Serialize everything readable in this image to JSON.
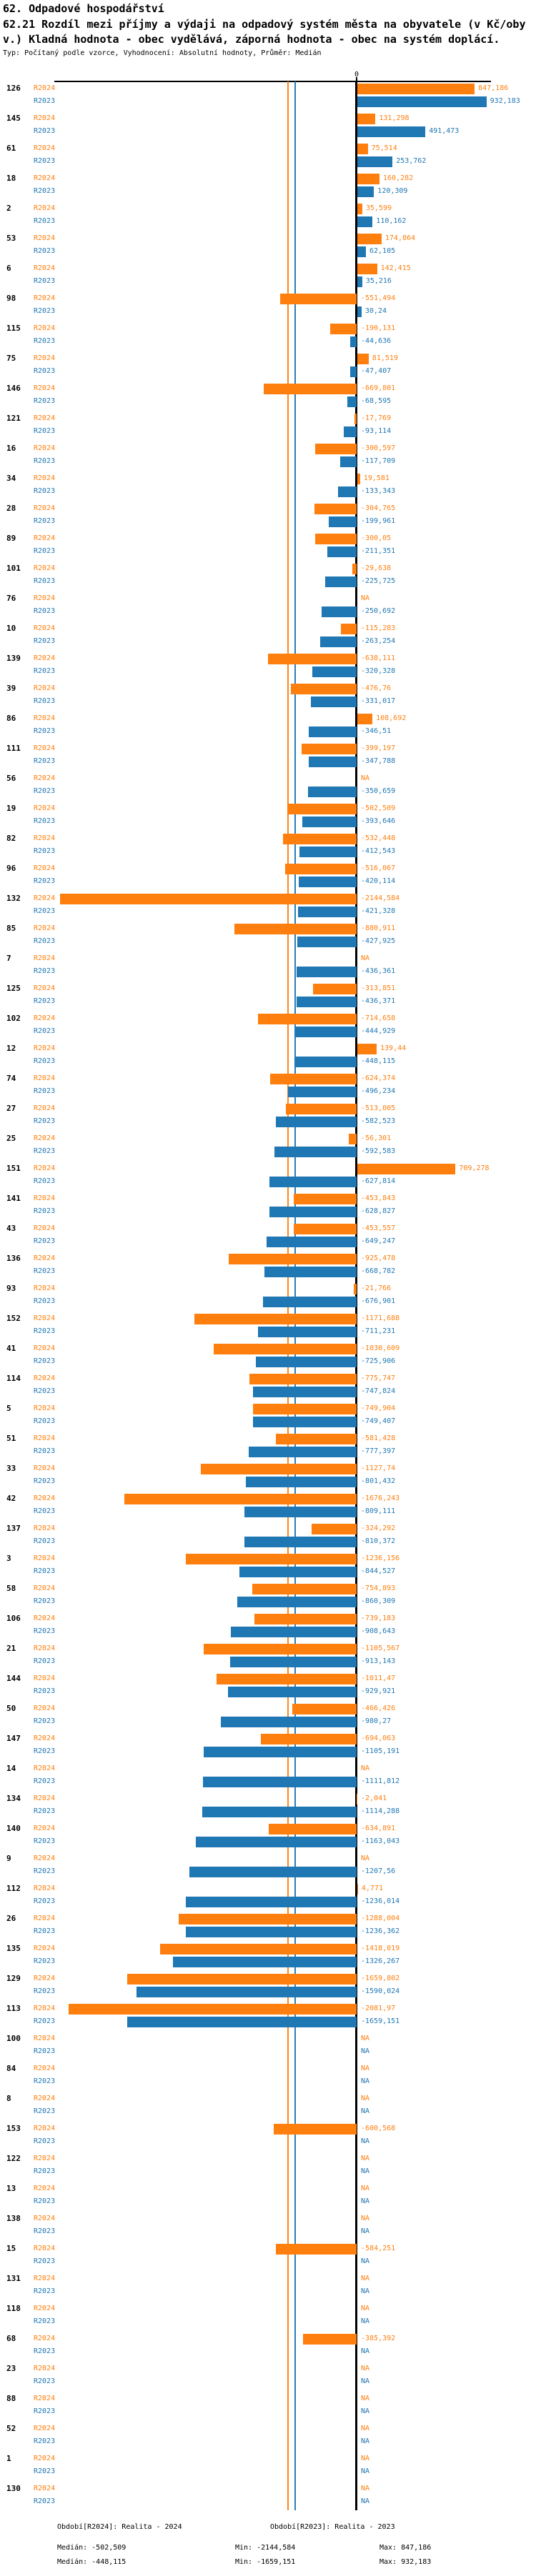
{
  "header": {
    "title_line1": "62. Odpadové hospodářství",
    "title_line2": "62.21 Rozdíl mezi příjmy a výdaji na odpadový systém města na obyvatele (v Kč/oby",
    "title_line3": "v.) Kladná hodnota - obec vydělává, záporná hodnota - obec na systém doplácí.",
    "subtitle": "Typ: Počítaný podle vzorce, Vyhodnocení: Absolutní hodnoty, Průměr: Medián"
  },
  "chart_data": {
    "type": "bar",
    "orientation": "horizontal",
    "unit": "Kč/obyv.",
    "value_format": "czech_decimal_comma",
    "na_text": "NA",
    "axis": {
      "zero_tick_label": "0",
      "xlim": [
        -2185,
        975
      ],
      "grid": false
    },
    "series_names": [
      "R2024",
      "R2023"
    ],
    "colors": {
      "R2024": "#ff7f0e",
      "R2023": "#1f77b4",
      "axis": "#000000"
    },
    "stats": {
      "R2024": {
        "median": -502.509,
        "min": -2144.584,
        "max": 847.186
      },
      "R2023": {
        "median": -448.115,
        "min": -1659.151,
        "max": 932.183
      }
    },
    "groups": [
      {
        "id": "126",
        "r2024": "847,186",
        "r2023": "932,183"
      },
      {
        "id": "145",
        "r2024": "131,298",
        "r2023": "491,473"
      },
      {
        "id": "61",
        "r2024": "75,514",
        "r2023": "253,762"
      },
      {
        "id": "18",
        "r2024": "160,282",
        "r2023": "120,309"
      },
      {
        "id": "2",
        "r2024": "35,599",
        "r2023": "110,162"
      },
      {
        "id": "53",
        "r2024": "174,864",
        "r2023": "62,105"
      },
      {
        "id": "6",
        "r2024": "142,415",
        "r2023": "35,216"
      },
      {
        "id": "98",
        "r2024": "-551,494",
        "r2023": "30,24"
      },
      {
        "id": "115",
        "r2024": "-190,131",
        "r2023": "-44,636"
      },
      {
        "id": "75",
        "r2024": "81,519",
        "r2023": "-47,407"
      },
      {
        "id": "146",
        "r2024": "-669,801",
        "r2023": "-68,595"
      },
      {
        "id": "121",
        "r2024": "-17,769",
        "r2023": "-93,114"
      },
      {
        "id": "16",
        "r2024": "-300,597",
        "r2023": "-117,709"
      },
      {
        "id": "34",
        "r2024": "19,581",
        "r2023": "-133,343"
      },
      {
        "id": "28",
        "r2024": "-304,765",
        "r2023": "-199,961"
      },
      {
        "id": "89",
        "r2024": "-300,05",
        "r2023": "-211,351"
      },
      {
        "id": "101",
        "r2024": "-29,638",
        "r2023": "-225,725"
      },
      {
        "id": "76",
        "r2024": "NA",
        "r2023": "-250,692"
      },
      {
        "id": "10",
        "r2024": "-115,283",
        "r2023": "-263,254"
      },
      {
        "id": "139",
        "r2024": "-638,111",
        "r2023": "-320,328"
      },
      {
        "id": "39",
        "r2024": "-476,76",
        "r2023": "-331,017"
      },
      {
        "id": "86",
        "r2024": "108,692",
        "r2023": "-346,51"
      },
      {
        "id": "111",
        "r2024": "-399,197",
        "r2023": "-347,788"
      },
      {
        "id": "56",
        "r2024": "NA",
        "r2023": "-350,659"
      },
      {
        "id": "19",
        "r2024": "-502,509",
        "r2023": "-393,646"
      },
      {
        "id": "82",
        "r2024": "-532,448",
        "r2023": "-412,543"
      },
      {
        "id": "96",
        "r2024": "-516,067",
        "r2023": "-420,114"
      },
      {
        "id": "132",
        "r2024": "-2144,584",
        "r2023": "-421,328"
      },
      {
        "id": "85",
        "r2024": "-880,911",
        "r2023": "-427,925"
      },
      {
        "id": "7",
        "r2024": "NA",
        "r2023": "-436,361"
      },
      {
        "id": "125",
        "r2024": "-313,851",
        "r2023": "-436,371"
      },
      {
        "id": "102",
        "r2024": "-714,658",
        "r2023": "-444,929"
      },
      {
        "id": "12",
        "r2024": "139,44",
        "r2023": "-448,115"
      },
      {
        "id": "74",
        "r2024": "-624,374",
        "r2023": "-496,234"
      },
      {
        "id": "27",
        "r2024": "-513,005",
        "r2023": "-582,523"
      },
      {
        "id": "25",
        "r2024": "-56,301",
        "r2023": "-592,583"
      },
      {
        "id": "151",
        "r2024": "709,278",
        "r2023": "-627,814"
      },
      {
        "id": "141",
        "r2024": "-453,843",
        "r2023": "-628,827"
      },
      {
        "id": "43",
        "r2024": "-453,557",
        "r2023": "-649,247"
      },
      {
        "id": "136",
        "r2024": "-925,478",
        "r2023": "-668,782"
      },
      {
        "id": "93",
        "r2024": "-21,766",
        "r2023": "-676,901"
      },
      {
        "id": "152",
        "r2024": "-1171,688",
        "r2023": "-711,231"
      },
      {
        "id": "41",
        "r2024": "-1030,609",
        "r2023": "-725,906"
      },
      {
        "id": "114",
        "r2024": "-775,747",
        "r2023": "-747,824"
      },
      {
        "id": "5",
        "r2024": "-749,904",
        "r2023": "-749,407"
      },
      {
        "id": "51",
        "r2024": "-581,428",
        "r2023": "-777,397"
      },
      {
        "id": "33",
        "r2024": "-1127,74",
        "r2023": "-801,432"
      },
      {
        "id": "42",
        "r2024": "-1676,243",
        "r2023": "-809,111"
      },
      {
        "id": "137",
        "r2024": "-324,292",
        "r2023": "-810,372"
      },
      {
        "id": "3",
        "r2024": "-1236,156",
        "r2023": "-844,527"
      },
      {
        "id": "58",
        "r2024": "-754,893",
        "r2023": "-860,309"
      },
      {
        "id": "106",
        "r2024": "-739,183",
        "r2023": "-908,643"
      },
      {
        "id": "21",
        "r2024": "-1105,567",
        "r2023": "-913,143"
      },
      {
        "id": "144",
        "r2024": "-1011,47",
        "r2023": "-929,921"
      },
      {
        "id": "50",
        "r2024": "-466,426",
        "r2023": "-980,27"
      },
      {
        "id": "147",
        "r2024": "-694,063",
        "r2023": "-1105,191"
      },
      {
        "id": "14",
        "r2024": "NA",
        "r2023": "-1111,812"
      },
      {
        "id": "134",
        "r2024": "-2,041",
        "r2023": "-1114,288"
      },
      {
        "id": "140",
        "r2024": "-634,891",
        "r2023": "-1163,043"
      },
      {
        "id": "9",
        "r2024": "NA",
        "r2023": "-1207,56"
      },
      {
        "id": "112",
        "r2024": "4,771",
        "r2023": "-1236,014"
      },
      {
        "id": "26",
        "r2024": "-1288,004",
        "r2023": "-1236,362"
      },
      {
        "id": "135",
        "r2024": "-1418,019",
        "r2023": "-1326,267"
      },
      {
        "id": "129",
        "r2024": "-1659,802",
        "r2023": "-1590,024"
      },
      {
        "id": "113",
        "r2024": "-2081,97",
        "r2023": "-1659,151"
      },
      {
        "id": "100",
        "r2024": "NA",
        "r2023": "NA"
      },
      {
        "id": "84",
        "r2024": "NA",
        "r2023": "NA"
      },
      {
        "id": "8",
        "r2024": "NA",
        "r2023": "NA"
      },
      {
        "id": "153",
        "r2024": "-600,568",
        "r2023": "NA"
      },
      {
        "id": "122",
        "r2024": "NA",
        "r2023": "NA"
      },
      {
        "id": "13",
        "r2024": "NA",
        "r2023": "NA"
      },
      {
        "id": "138",
        "r2024": "NA",
        "r2023": "NA"
      },
      {
        "id": "15",
        "r2024": "-584,251",
        "r2023": "NA"
      },
      {
        "id": "131",
        "r2024": "NA",
        "r2023": "NA"
      },
      {
        "id": "118",
        "r2024": "NA",
        "r2023": "NA"
      },
      {
        "id": "68",
        "r2024": "-385,392",
        "r2023": "NA"
      },
      {
        "id": "23",
        "r2024": "NA",
        "r2023": "NA"
      },
      {
        "id": "88",
        "r2024": "NA",
        "r2023": "NA"
      },
      {
        "id": "52",
        "r2024": "NA",
        "r2023": "NA"
      },
      {
        "id": "1",
        "r2024": "NA",
        "r2023": "NA"
      },
      {
        "id": "130",
        "r2024": "NA",
        "r2023": "NA"
      }
    ]
  },
  "legend": {
    "r2024": {
      "label": "Období[R2024]: Realita - 2024",
      "median": "Medián: -502,509",
      "min": "Min: -2144,584",
      "max": "Max: 847,186"
    },
    "r2023": {
      "label": "Období[R2023]: Realita - 2023",
      "median": "Medián: -448,115",
      "min": "Min: -1659,151",
      "max": "Max: 932,183"
    }
  }
}
